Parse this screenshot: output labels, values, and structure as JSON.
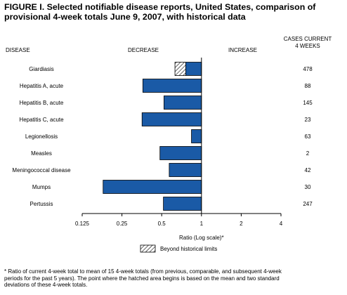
{
  "title_lines": [
    "FIGURE I. Selected notifiable disease reports, United States, comparison of",
    "provisional 4-week totals June 9, 2007, with historical data"
  ],
  "headers": {
    "disease": "DISEASE",
    "decrease": "DECREASE",
    "increase": "INCREASE",
    "cases_line1": "CASES CURRENT",
    "cases_line2": "4 WEEKS"
  },
  "legend_label": "Beyond historical limits",
  "footnote_lines": [
    "* Ratio of current 4-week total to mean of 15 4-week totals (from previous, comparable, and subsequent 4-week",
    "  periods for the past 5 years). The point where the hatched area begins is based on the mean and two standard",
    "  deviations of these 4-week totals."
  ],
  "chart_data": {
    "type": "bar",
    "orientation": "horizontal",
    "scale": "log2",
    "xlabel": "Ratio (Log scale)*",
    "xlim": [
      0.125,
      4
    ],
    "xticks": [
      0.125,
      0.25,
      0.5,
      1,
      2,
      4
    ],
    "xtick_labels": [
      "0.125",
      "0.25",
      "0.5",
      "1",
      "2",
      "4"
    ],
    "baseline": 1,
    "colors": {
      "bar": "#1a5aa6",
      "hatch_fill": "#ffffff",
      "stroke": "#000000"
    },
    "categories": [
      "Giardiasis",
      "Hepatitis A, acute",
      "Hepatitis B, acute",
      "Hepatitis C, acute",
      "Legionellosis",
      "Measles",
      "Meningococcal disease",
      "Mumps",
      "Pertussis"
    ],
    "values": [
      0.63,
      0.36,
      0.52,
      0.355,
      0.84,
      0.485,
      0.57,
      0.18,
      0.515
    ],
    "beyond_limit_start": [
      0.76,
      null,
      null,
      null,
      null,
      null,
      null,
      null,
      null
    ],
    "cases_current_4_weeks": [
      "478",
      "88",
      "145",
      "23",
      "63",
      "2",
      "42",
      "30",
      "247"
    ]
  }
}
